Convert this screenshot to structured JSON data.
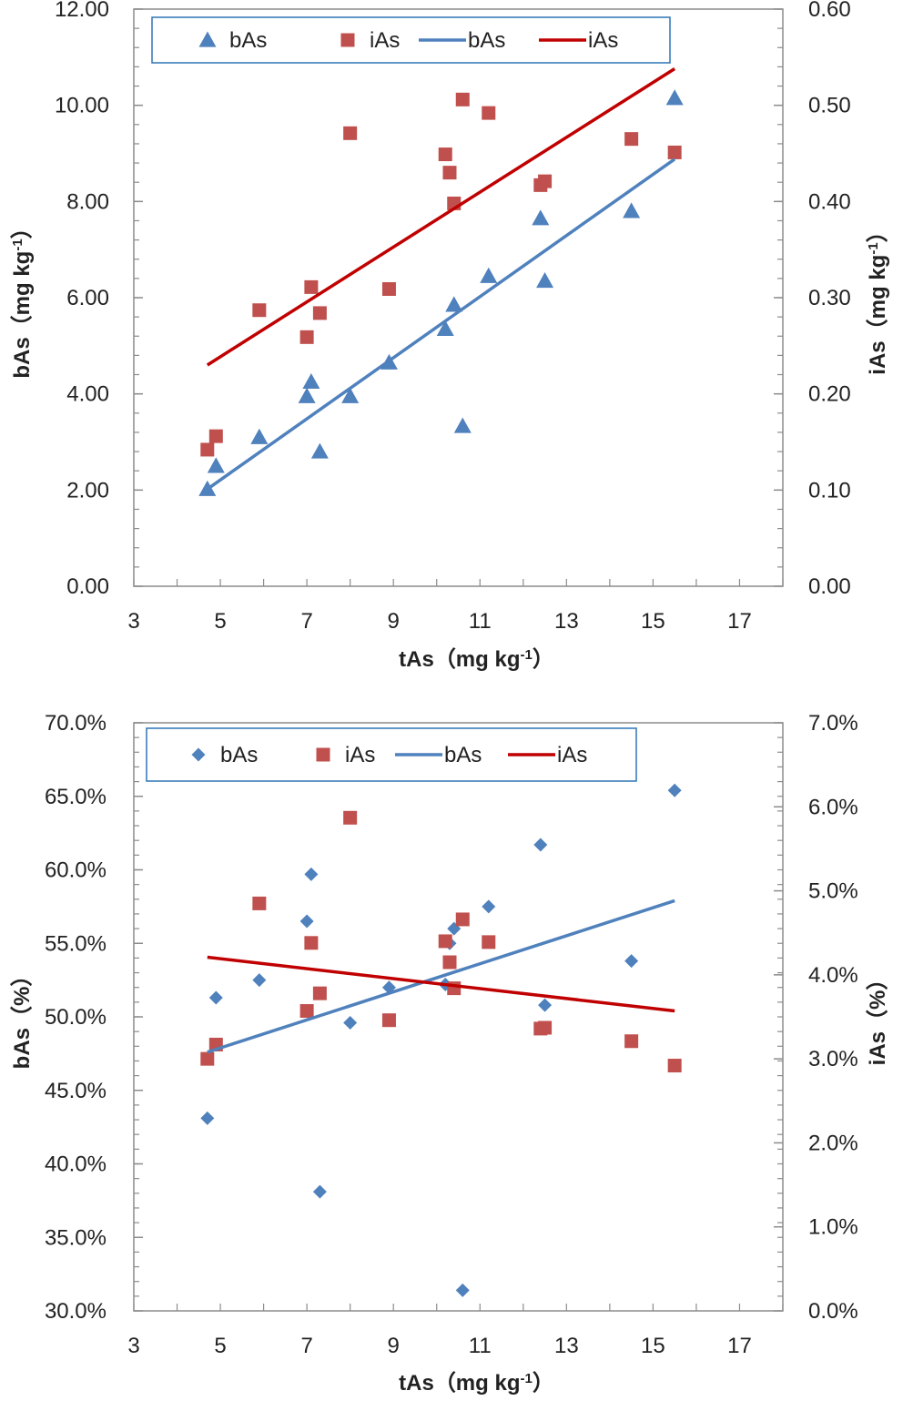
{
  "chart_data": [
    {
      "type": "scatter",
      "xlabel": "tAs（mg kg-1）",
      "ylabel": "bAs（mg kg-1）",
      "y2label": "iAs（mg kg-1）",
      "xlim": [
        3,
        18
      ],
      "ylim": [
        0,
        12
      ],
      "y2lim": [
        0,
        0.6
      ],
      "x_ticks": [
        3,
        5,
        7,
        9,
        11,
        13,
        15,
        17
      ],
      "x_tick_labels": [
        "3",
        "5",
        "7",
        "9",
        "11",
        "13",
        "15",
        "17"
      ],
      "y_ticks": [
        0,
        2,
        4,
        6,
        8,
        10,
        12
      ],
      "y_tick_labels": [
        "0.00",
        "2.00",
        "4.00",
        "6.00",
        "8.00",
        "10.00",
        "12.00"
      ],
      "y2_ticks": [
        0,
        0.1,
        0.2,
        0.3,
        0.4,
        0.5,
        0.6
      ],
      "y2_tick_labels": [
        "0.00",
        "0.10",
        "0.20",
        "0.30",
        "0.40",
        "0.50",
        "0.60"
      ],
      "legend": [
        "bAs",
        "iAs",
        "bAs",
        "iAs"
      ],
      "legend_position": "top",
      "series": [
        {
          "name": "bAs",
          "kind": "points",
          "marker": "triangle",
          "color": "#4F81BD",
          "axis": "left",
          "x": [
            4.7,
            4.9,
            5.9,
            7.0,
            7.1,
            7.3,
            8.0,
            8.9,
            10.2,
            10.4,
            10.6,
            11.2,
            12.4,
            12.5,
            14.5,
            15.5
          ],
          "y": [
            2.02,
            2.5,
            3.1,
            3.95,
            4.25,
            2.8,
            3.95,
            4.65,
            5.35,
            5.85,
            3.33,
            6.45,
            7.65,
            6.35,
            7.8,
            10.15
          ]
        },
        {
          "name": "iAs",
          "kind": "points",
          "marker": "square",
          "color": "#C0504D",
          "axis": "right",
          "x": [
            4.7,
            4.9,
            5.9,
            7.0,
            7.1,
            7.3,
            8.0,
            8.9,
            10.2,
            10.3,
            10.4,
            10.6,
            11.2,
            12.4,
            12.5,
            14.5,
            15.5
          ],
          "y": [
            0.142,
            0.156,
            0.287,
            0.259,
            0.311,
            0.284,
            0.471,
            0.309,
            0.449,
            0.43,
            0.398,
            0.506,
            0.492,
            0.417,
            0.421,
            0.465,
            0.451
          ]
        },
        {
          "name": "bAs",
          "kind": "line",
          "color": "#4F81BD",
          "axis": "left",
          "x": [
            4.7,
            15.5
          ],
          "y": [
            2.02,
            8.88
          ]
        },
        {
          "name": "iAs",
          "kind": "line",
          "color": "#C00000",
          "axis": "right",
          "x": [
            4.7,
            15.5
          ],
          "y": [
            0.23,
            0.538
          ]
        }
      ]
    },
    {
      "type": "scatter",
      "xlabel": "tAs（mg kg-1）",
      "ylabel": "bAs（%）",
      "y2label": "iAs（%）",
      "xlim": [
        3,
        18
      ],
      "ylim": [
        30,
        70
      ],
      "y2lim": [
        0,
        7
      ],
      "x_ticks": [
        3,
        5,
        7,
        9,
        11,
        13,
        15,
        17
      ],
      "x_tick_labels": [
        "3",
        "5",
        "7",
        "9",
        "11",
        "13",
        "15",
        "17"
      ],
      "y_ticks": [
        30,
        35,
        40,
        45,
        50,
        55,
        60,
        65,
        70
      ],
      "y_tick_labels": [
        "30.0%",
        "35.0%",
        "40.0%",
        "45.0%",
        "50.0%",
        "55.0%",
        "60.0%",
        "65.0%",
        "70.0%"
      ],
      "y2_ticks": [
        0,
        1,
        2,
        3,
        4,
        5,
        6,
        7
      ],
      "y2_tick_labels": [
        "0.0%",
        "1.0%",
        "2.0%",
        "3.0%",
        "4.0%",
        "5.0%",
        "6.0%",
        "7.0%"
      ],
      "legend": [
        "bAs",
        "iAs",
        "bAs",
        "iAs"
      ],
      "legend_position": "top",
      "series": [
        {
          "name": "bAs",
          "kind": "points",
          "marker": "diamond",
          "color": "#4F81BD",
          "axis": "left",
          "x": [
            4.7,
            4.9,
            5.9,
            7.0,
            7.1,
            7.3,
            8.0,
            8.9,
            10.2,
            10.3,
            10.4,
            10.6,
            11.2,
            12.4,
            12.5,
            14.5,
            15.5
          ],
          "y": [
            43.1,
            51.3,
            52.5,
            56.5,
            59.7,
            38.1,
            49.6,
            52.0,
            52.2,
            55.0,
            56.0,
            31.4,
            57.5,
            61.7,
            50.8,
            53.8,
            65.4
          ]
        },
        {
          "name": "iAs",
          "kind": "points",
          "marker": "square",
          "color": "#C0504D",
          "axis": "right",
          "x": [
            4.7,
            4.9,
            5.9,
            7.0,
            7.1,
            7.3,
            8.0,
            8.9,
            10.2,
            10.3,
            10.4,
            10.6,
            11.2,
            12.4,
            12.5,
            14.5,
            15.5
          ],
          "y": [
            3.0,
            3.17,
            4.85,
            3.57,
            4.38,
            3.78,
            5.87,
            3.46,
            4.4,
            4.15,
            3.84,
            4.66,
            4.39,
            3.36,
            3.37,
            3.21,
            2.92
          ]
        },
        {
          "name": "bAs",
          "kind": "line",
          "color": "#4F81BD",
          "axis": "left",
          "x": [
            4.7,
            15.5
          ],
          "y": [
            47.6,
            57.9
          ]
        },
        {
          "name": "iAs",
          "kind": "line",
          "color": "#C00000",
          "axis": "right",
          "x": [
            4.7,
            15.5
          ],
          "y": [
            4.21,
            3.57
          ]
        }
      ]
    }
  ]
}
